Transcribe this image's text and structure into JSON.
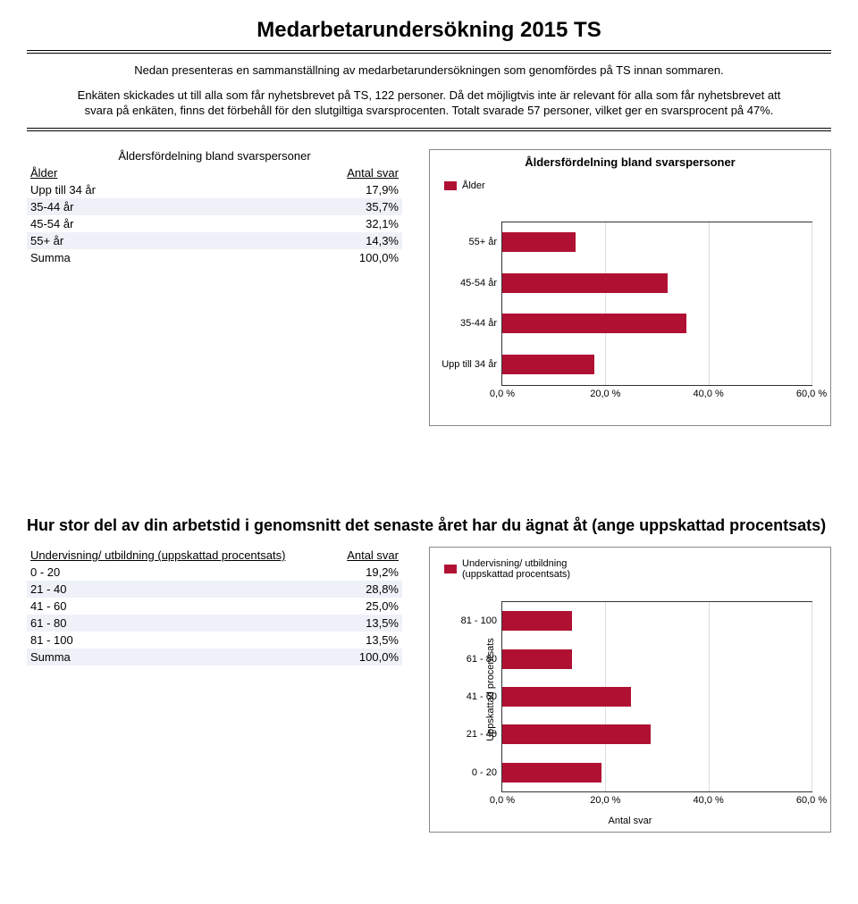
{
  "title": "Medarbetarundersökning 2015 TS",
  "intro_p1": "Nedan presenteras en sammanställning av medarbetarundersökningen som genomfördes på TS innan sommaren.",
  "intro_p2": "Enkäten skickades ut till alla som får nyhetsbrevet på TS, 122 personer. Då det möjligtvis inte är relevant för alla som får nyhetsbrevet att  svara på enkäten, finns det förbehåll för den slutgiltiga  svarsprocenten. Totalt svarade 57 personer, vilket ger en svarsprocent  på 47%.",
  "age_table": {
    "caption": "Åldersfördelning bland svarspersoner",
    "col1": "Ålder",
    "col2": "Antal svar",
    "rows": [
      {
        "label": "Upp till 34 år",
        "value": "17,9%"
      },
      {
        "label": "35-44 år",
        "value": "35,7%"
      },
      {
        "label": "45-54 år",
        "value": "32,1%"
      },
      {
        "label": "55+ år",
        "value": "14,3%"
      },
      {
        "label": "Summa",
        "value": "100,0%"
      }
    ]
  },
  "age_chart": {
    "title": "Åldersfördelning bland svarspersoner",
    "legend": "Ålder",
    "bar_color": "#b01133",
    "grid_color": "#dddddd",
    "xmin": 0,
    "xmax": 60,
    "xticks": [
      "0,0 %",
      "20,0 %",
      "40,0 %",
      "60,0 %"
    ],
    "categories": [
      "55+ år",
      "45-54 år",
      "35-44 år",
      "Upp till 34 år"
    ],
    "values": [
      14.3,
      32.1,
      35.7,
      17.9
    ]
  },
  "question2": "Hur stor del av din arbetstid i genomsnitt det senaste året har du ägnat åt (ange uppskattad procentsats)",
  "teach_table": {
    "col1": "Undervisning/ utbildning (uppskattad procentsats)",
    "col2": "Antal svar",
    "rows": [
      {
        "label": "0 - 20",
        "value": "19,2%"
      },
      {
        "label": "21 - 40",
        "value": "28,8%"
      },
      {
        "label": "41 - 60",
        "value": "25,0%"
      },
      {
        "label": "61 - 80",
        "value": "13,5%"
      },
      {
        "label": "81 - 100",
        "value": "13,5%"
      },
      {
        "label": "Summa",
        "value": "100,0%"
      }
    ]
  },
  "teach_chart": {
    "legend1": "Undervisning/ utbildning",
    "legend2": "(uppskattad procentsats)",
    "bar_color": "#b01133",
    "grid_color": "#dddddd",
    "xmin": 0,
    "xmax": 60,
    "xticks": [
      "0,0 %",
      "20,0 %",
      "40,0 %",
      "60,0 %"
    ],
    "xlabel": "Antal svar",
    "ylabel": "Uppskattad procentsats",
    "categories": [
      "81 - 100",
      "61 - 80",
      "41 - 60",
      "21 - 40",
      "0 - 20"
    ],
    "values": [
      13.5,
      13.5,
      25.0,
      28.8,
      19.2
    ]
  }
}
